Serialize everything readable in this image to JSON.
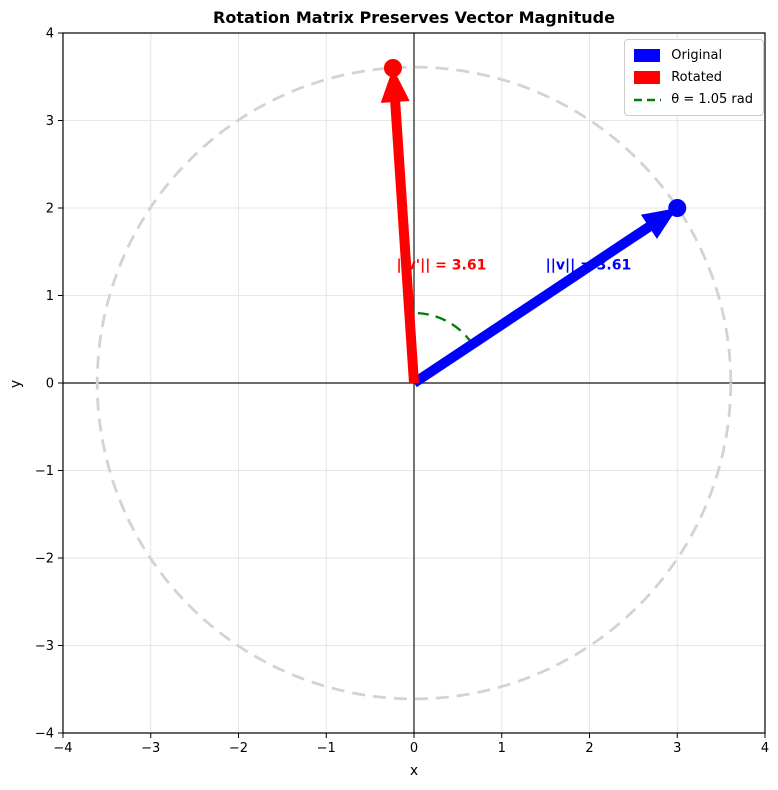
{
  "chart_data": {
    "type": "line",
    "title": "Rotation Matrix Preserves Vector Magnitude",
    "xlabel": "x",
    "ylabel": "y",
    "xlim": [
      -4,
      4
    ],
    "ylim": [
      -4,
      4
    ],
    "xtick_values": [
      -4,
      -3,
      -2,
      -1,
      0,
      1,
      2,
      3,
      4
    ],
    "xtick_labels": [
      "−4",
      "−3",
      "−2",
      "−1",
      "0",
      "1",
      "2",
      "3",
      "4"
    ],
    "ytick_values": [
      -4,
      -3,
      -2,
      -1,
      0,
      1,
      2,
      3,
      4
    ],
    "ytick_labels": [
      "−4",
      "−3",
      "−2",
      "−1",
      "0",
      "1",
      "2",
      "3",
      "4"
    ],
    "grid": true,
    "grid_color": "#e6e6e6",
    "zero_line_color": "#3a3a3a",
    "spine_color": "#000000",
    "magnitude_circle": {
      "center": [
        0,
        0
      ],
      "radius": 3.61,
      "color": "#d3d3d3",
      "linestyle": "dashed"
    },
    "angle_arc": {
      "center": [
        0,
        0
      ],
      "radius": 0.8,
      "start_deg": 33.7,
      "end_deg": 93.9,
      "color": "#008000",
      "linestyle": "dashed",
      "theta_rad": 1.05
    },
    "vectors": [
      {
        "name": "original",
        "from": [
          0,
          0
        ],
        "to": [
          3,
          2
        ],
        "color": "#0000ff",
        "annotation": "||v|| = 3.61",
        "annotation_pos": [
          1.5,
          1.3
        ]
      },
      {
        "name": "rotated",
        "from": [
          0,
          0
        ],
        "to": [
          -0.24,
          3.6
        ],
        "color": "#ff0000",
        "annotation": "||v'|| = 3.61",
        "annotation_pos": [
          -0.2,
          1.3
        ]
      }
    ],
    "legend": {
      "position": "upper right",
      "entries": [
        {
          "label": "Original",
          "swatch": "patch",
          "color": "#0000ff"
        },
        {
          "label": "Rotated",
          "swatch": "patch",
          "color": "#ff0000"
        },
        {
          "label": "θ = 1.05 rad",
          "swatch": "dashed-line",
          "color": "#008000"
        }
      ]
    }
  }
}
